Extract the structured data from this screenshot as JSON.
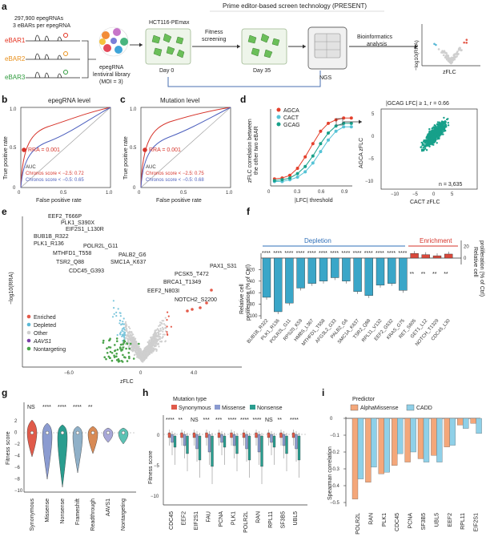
{
  "panel_letters": [
    "a",
    "b",
    "c",
    "d",
    "e",
    "f",
    "g",
    "h",
    "i"
  ],
  "panel_a": {
    "title": "Prime editor-based screen technology (PRESENT)",
    "library_line1": "297,900 epegRNAs",
    "library_line2": "3 eBARs per epegRNA",
    "ebars": [
      "eBAR1",
      "eBAR2",
      "eBAR3"
    ],
    "ebar_colors": [
      "#e4301e",
      "#e8901c",
      "#2e9a3c"
    ],
    "lib_label1": "epegRNA",
    "lib_label2": "lentiviral library",
    "lib_label3": "(MOI = 3)",
    "cell_line": "HCT116-PEmax",
    "day0": "Day 0",
    "fitness_label1": "Fitness",
    "fitness_label2": "screening",
    "day35": "Day 35",
    "ngs": "NGS",
    "bioinf1": "Bioinformatics",
    "bioinf2": "analysis",
    "volcano_ylabel": "−log10(RRA)",
    "volcano_xlabel": "zFLC"
  },
  "panel_b": {
    "title": "epegRNA level",
    "xlabel": "False positive rate",
    "ylabel": "True positive rate",
    "rra": "RRA = 0.001",
    "auc": "AUC",
    "chronos1": "Chronos score < −2.5: 0.72",
    "chronos2": "Chronos score < −0.5: 0.65"
  },
  "panel_c": {
    "title": "Mutation level",
    "xlabel": "False positive rate",
    "ylabel": "True positive rate",
    "rra": "RRA = 0.001",
    "auc": "AUC",
    "chronos1": "Chronos score < −2.5: 0.75",
    "chronos2": "Chronos score < −0.5: 0.68"
  },
  "panel_d": {
    "ylabel1": "zFLC correlation between",
    "ylabel2": "the other two eBAR",
    "xlabel": "|LFC| threshold",
    "legend": [
      "AGCA",
      "CACT",
      "GCAG"
    ],
    "colors": [
      "#e4402c",
      "#56c3d6",
      "#17a08a"
    ],
    "scatter_title": "|GCAG LFC| ≥ 1, r = 0.66",
    "scatter_xlabel": "CACT zFLC",
    "scatter_ylabel": "AGCA zFLC",
    "n_label": "n = 3,635"
  },
  "panel_e": {
    "ylabel": "−log10(RRA)",
    "xlabel": "zFLC",
    "genes": [
      "EEF2_T666P",
      "PLK1_S390X",
      "EIF2S1_L130R",
      "BUB1B_R322",
      "PLK1_R136",
      "POLR2L_G11",
      "MTHFD1_T558",
      "PALB2_G6",
      "TSR2_Q88",
      "SMC1A_K637",
      "CDC45_G393",
      "PCSK5_T472",
      "PAX1_S31",
      "BRCA1_T1349",
      "EEF2_N803I",
      "NOTCH2_S2200"
    ],
    "legend": [
      "Enriched",
      "Depleted",
      "Other",
      "AAVS1",
      "Nontargeting"
    ]
  },
  "panel_f": {
    "depletion": "Depletion",
    "enrichment": "Enrichment",
    "ylabel1": "Relative cell",
    "ylabel2": "proliferation (% of Ctrl)",
    "categories": [
      "BUB1B_R322",
      "PLK1_R136",
      "POLR2L_G11",
      "RPS20_K59",
      "HMBS_L367",
      "MTHFD1_T558",
      "AFG3L2_G33",
      "PALB2_G6",
      "SMC1A_K637",
      "TSR2_Q88",
      "RPL11_V132",
      "EEF2_G532",
      "KRAS_G75",
      "RET_S605",
      "GET1_L12",
      "NOTCH_T1329",
      "CDC45_L30"
    ],
    "sig": [
      "****",
      "****",
      "****",
      "****",
      "****",
      "****",
      "****",
      "****",
      "****",
      "****",
      "****",
      "****",
      "****",
      "**",
      "**",
      "**",
      "**"
    ],
    "values": [
      -68,
      -93,
      -78,
      -52,
      -44,
      -40,
      -34,
      -40,
      -58,
      -65,
      -47,
      -44,
      -56,
      8,
      6,
      4,
      7
    ],
    "ticks": [
      "−20",
      "−40",
      "−60",
      "−80",
      "−100"
    ],
    "right_ticks": [
      "20",
      "0"
    ]
  },
  "panel_g": {
    "ylabel": "Fitness score",
    "categories": [
      "Synonymous",
      "Missense",
      "Nonsense",
      "Frameshift",
      "Readthrough",
      "AAVS1",
      "Nontargeting"
    ],
    "colors": [
      "#e05a4a",
      "#8b9bd0",
      "#2a9d8f",
      "#8fb0c8",
      "#d88a55",
      "#a8a8d8",
      "#5cc2b4"
    ],
    "sig": [
      "NS",
      "****",
      "****",
      "****",
      "**",
      "",
      ""
    ],
    "ticks": [
      "2",
      "0",
      "−2",
      "−4",
      "−6",
      "−8",
      "−10"
    ]
  },
  "panel_h": {
    "legend_title": "Mutation type",
    "legend": [
      "Synonymous",
      "Missense",
      "Nonsense"
    ],
    "colors": [
      "#e05a4a",
      "#8b9bd0",
      "#2a9d8f"
    ],
    "ylabel": "Fitness score",
    "categories": [
      "CDC45",
      "EEF2",
      "EIF2S1",
      "FAU",
      "PCNA",
      "PLK1",
      "POLR2L",
      "RAN",
      "RPL11",
      "SF3B5",
      "UBL5"
    ],
    "sig": [
      "****",
      "**",
      "NS",
      "***",
      "***",
      "****",
      "****",
      "****",
      "NS",
      "**",
      "****"
    ],
    "ticks": [
      "0",
      "−5",
      "−10"
    ]
  },
  "panel_i": {
    "legend_title": "Predictor",
    "legend": [
      "AlphaMissense",
      "CADD"
    ],
    "colors": [
      "#f4a77a",
      "#8fd0e8"
    ],
    "ylabel": "Spearman correlation",
    "categories": [
      "POLR2L",
      "RAN",
      "PLK1",
      "CDC45",
      "PCNA",
      "SF3B5",
      "UBL5",
      "EEF2",
      "RPL11",
      "EIF2S1"
    ],
    "alpha": [
      -0.48,
      -0.38,
      -0.33,
      -0.28,
      -0.26,
      -0.24,
      -0.22,
      -0.17,
      -0.04,
      -0.03
    ],
    "cadd": [
      -0.36,
      -0.29,
      -0.32,
      -0.21,
      -0.2,
      -0.26,
      -0.26,
      -0.16,
      -0.06,
      -0.09
    ],
    "ticks": [
      "0",
      "−0.1",
      "−0.2",
      "−0.3",
      "−0.4",
      "−0.5"
    ]
  }
}
